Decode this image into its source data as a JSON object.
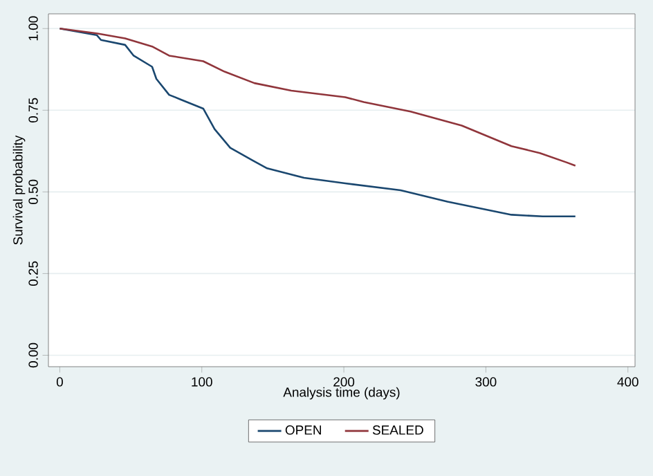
{
  "chart_data": {
    "type": "line",
    "xlabel": "Analysis time (days)",
    "ylabel": "Survival probability",
    "xlim": [
      -8,
      405
    ],
    "ylim": [
      -0.035,
      1.045
    ],
    "xticks": [
      0,
      100,
      200,
      300,
      400
    ],
    "yticks": [
      {
        "value": 0,
        "label": "0.00"
      },
      {
        "value": 0.25,
        "label": "0.25"
      },
      {
        "value": 0.5,
        "label": "0.50"
      },
      {
        "value": 0.75,
        "label": "0.75"
      },
      {
        "value": 1,
        "label": "1.00"
      }
    ],
    "grid": "y",
    "legend": "bottom",
    "series": [
      {
        "name": "OPEN",
        "color": "#1a476f",
        "x": [
          0,
          26,
          29,
          46,
          52,
          65,
          68,
          77,
          85,
          101,
          109,
          120,
          136,
          146,
          163,
          172,
          201,
          240,
          273,
          318,
          340,
          363
        ],
        "values": [
          1.0,
          0.98,
          0.965,
          0.95,
          0.917,
          0.883,
          0.846,
          0.797,
          0.783,
          0.755,
          0.692,
          0.635,
          0.596,
          0.572,
          0.553,
          0.543,
          0.526,
          0.505,
          0.47,
          0.43,
          0.425,
          0.425
        ]
      },
      {
        "name": "SEALED",
        "color": "#90353b",
        "x": [
          0,
          26,
          46,
          65,
          77,
          101,
          116,
          137,
          163,
          201,
          214,
          247,
          283,
          318,
          338,
          357,
          363
        ],
        "values": [
          1.0,
          0.985,
          0.97,
          0.945,
          0.917,
          0.9,
          0.868,
          0.833,
          0.81,
          0.79,
          0.775,
          0.746,
          0.703,
          0.64,
          0.619,
          0.59,
          0.58
        ]
      }
    ]
  }
}
